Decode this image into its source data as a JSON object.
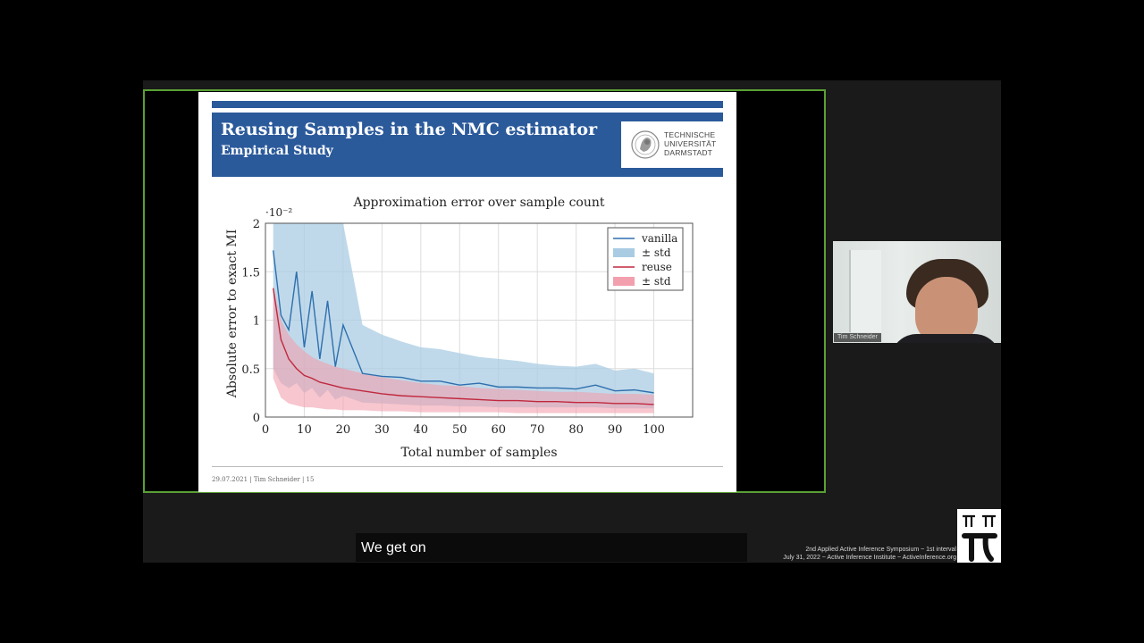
{
  "slide": {
    "title": "Reusing Samples in the NMC estimator",
    "subtitle": "Empirical Study",
    "logo_lines": [
      "TECHNISCHE",
      "UNIVERSITÄT",
      "DARMSTADT"
    ],
    "footer": "29.07.2021 | Tim Schneider | 15"
  },
  "webcam": {
    "name_label": "Tim Schneider"
  },
  "caption": {
    "text": "We get on"
  },
  "event": {
    "line1": "2nd Applied Active Inference Symposium ~ 1st interval",
    "line2": "July 31, 2022 ~ Active Inference Institute ~ ActiveInference.org"
  },
  "colors": {
    "accent": "#2b5a9b",
    "share_border": "#5aa035",
    "vanilla": "#2f6fae",
    "vanilla_band": "#a9cce3",
    "reuse": "#c0283e",
    "reuse_band": "#f2a0ae"
  },
  "chart_data": {
    "type": "line",
    "title": "Approximation error over sample count",
    "xlabel": "Total number of samples",
    "ylabel": "Absolute error to exact MI",
    "y_scale_label": "·10⁻²",
    "xlim": [
      0,
      110
    ],
    "ylim": [
      0,
      2
    ],
    "xticks": [
      0,
      10,
      20,
      30,
      40,
      50,
      60,
      70,
      80,
      90,
      100
    ],
    "yticks": [
      0,
      0.5,
      1,
      1.5,
      2
    ],
    "ytick_labels": [
      "0",
      "0.5",
      "1",
      "1.5",
      "2"
    ],
    "grid": true,
    "legend_position": "top-right",
    "legend": [
      "vanilla",
      "± std",
      "reuse",
      "± std"
    ],
    "x": [
      2,
      4,
      6,
      8,
      10,
      12,
      14,
      16,
      18,
      20,
      25,
      30,
      35,
      40,
      45,
      50,
      55,
      60,
      65,
      70,
      75,
      80,
      85,
      90,
      95,
      100
    ],
    "series": [
      {
        "name": "vanilla",
        "values": [
          1.72,
          1.05,
          0.9,
          1.5,
          0.72,
          1.3,
          0.6,
          1.2,
          0.52,
          0.95,
          0.45,
          0.42,
          0.41,
          0.37,
          0.37,
          0.33,
          0.35,
          0.31,
          0.31,
          0.3,
          0.3,
          0.29,
          0.33,
          0.27,
          0.28,
          0.25
        ],
        "lower": [
          0.5,
          0.35,
          0.3,
          0.35,
          0.25,
          0.3,
          0.2,
          0.28,
          0.18,
          0.22,
          0.15,
          0.14,
          0.13,
          0.12,
          0.12,
          0.11,
          0.11,
          0.1,
          0.1,
          0.1,
          0.1,
          0.1,
          0.1,
          0.09,
          0.09,
          0.09
        ],
        "upper": [
          2,
          2,
          2,
          2,
          2,
          2,
          2,
          2,
          2,
          2,
          0.95,
          0.85,
          0.78,
          0.72,
          0.7,
          0.66,
          0.62,
          0.6,
          0.58,
          0.55,
          0.53,
          0.52,
          0.55,
          0.48,
          0.5,
          0.45
        ]
      },
      {
        "name": "reuse",
        "values": [
          1.33,
          0.8,
          0.6,
          0.5,
          0.43,
          0.4,
          0.36,
          0.34,
          0.32,
          0.3,
          0.27,
          0.24,
          0.22,
          0.21,
          0.2,
          0.19,
          0.18,
          0.17,
          0.17,
          0.16,
          0.16,
          0.15,
          0.15,
          0.14,
          0.14,
          0.13
        ],
        "lower": [
          0.4,
          0.2,
          0.14,
          0.12,
          0.1,
          0.1,
          0.09,
          0.08,
          0.08,
          0.07,
          0.07,
          0.06,
          0.06,
          0.05,
          0.05,
          0.05,
          0.05,
          0.05,
          0.04,
          0.04,
          0.04,
          0.04,
          0.04,
          0.04,
          0.04,
          0.04
        ],
        "upper": [
          1.35,
          1.0,
          0.85,
          0.75,
          0.68,
          0.62,
          0.58,
          0.55,
          0.52,
          0.5,
          0.45,
          0.41,
          0.38,
          0.35,
          0.33,
          0.32,
          0.3,
          0.29,
          0.28,
          0.27,
          0.26,
          0.26,
          0.25,
          0.24,
          0.24,
          0.23
        ]
      }
    ]
  }
}
